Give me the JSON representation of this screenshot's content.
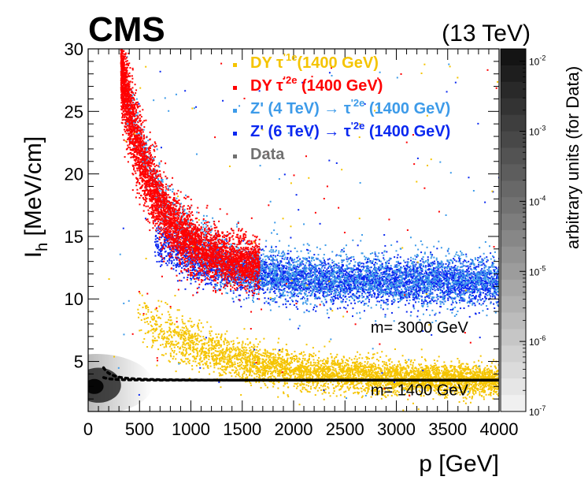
{
  "chart_data": {
    "type": "scatter",
    "experiment_label": "CMS",
    "energy_label": "(13 TeV)",
    "xlabel": "p [GeV]",
    "ylabel_main": "I",
    "ylabel_sub": "h",
    "ylabel_unit": "[MeV/cm]",
    "xlim": [
      0,
      4000
    ],
    "ylim": [
      1,
      30
    ],
    "x_ticks": [
      0,
      500,
      1000,
      1500,
      2000,
      2500,
      3000,
      3500,
      4000
    ],
    "y_ticks": [
      5,
      10,
      15,
      20,
      25,
      30
    ],
    "colorbar": {
      "label": "arbitrary units (for Data)",
      "scale": "log",
      "ticks": [
        {
          "base": "10",
          "exp": "-2",
          "value": 0.01
        },
        {
          "base": "10",
          "exp": "-3",
          "value": 0.001
        },
        {
          "base": "10",
          "exp": "-4",
          "value": 0.0001
        },
        {
          "base": "10",
          "exp": "-5",
          "value": 1e-05
        },
        {
          "base": "10",
          "exp": "-6",
          "value": 1e-06
        },
        {
          "base": "10",
          "exp": "-7",
          "value": 1e-07
        }
      ],
      "range": [
        1e-07,
        0.015
      ]
    },
    "legend": [
      {
        "name": "DY τ'1e (1400 GeV)",
        "color": "#f5c400",
        "parts": [
          "DY  τ",
          "'1e",
          "(1400 GeV)"
        ]
      },
      {
        "name": "DY τ'2e (1400 GeV)",
        "color": "#ff0000",
        "parts": [
          "DY  τ",
          "'2e",
          " (1400 GeV)"
        ]
      },
      {
        "name": "Z' (4 TeV) → τ'2e (1400 GeV)",
        "color": "#3d9be9",
        "parts": [
          "Z' (4 TeV) → τ",
          "'2e",
          " (1400 GeV)"
        ]
      },
      {
        "name": "Z' (6 TeV) → τ'2e (1400 GeV)",
        "color": "#0a28f0",
        "parts": [
          "Z' (6 TeV) → τ",
          "'2e",
          " (1400 GeV)"
        ]
      },
      {
        "name": "Data",
        "color": "#707070",
        "parts": [
          "Data",
          "",
          ""
        ]
      }
    ],
    "mass_curves": [
      {
        "label": "m= 3000 GeV",
        "mass_gev": 3000,
        "K": 2.5,
        "C": 3.5
      },
      {
        "label": "m= 1400 GeV",
        "mass_gev": 1400,
        "K": 2.5,
        "C": 3.5
      }
    ],
    "series": [
      {
        "name": "DY τ'1e (1400 GeV)",
        "color": "#f5c400",
        "description": "band from p≈500 to 4000 GeV, Ih ≈ 8.5 → 3.5"
      },
      {
        "name": "DY τ'2e (1400 GeV)",
        "color": "#ff0000",
        "description": "band from p≈300 to 1700 GeV, Ih ≈ 30 → 12"
      },
      {
        "name": "Z' (4 TeV) → τ'2e (1400 GeV)",
        "color": "#3d9be9",
        "description": "band from p≈300 to 4000 GeV, Ih ≈ 30 → 11"
      },
      {
        "name": "Z' (6 TeV) → τ'2e (1400 GeV)",
        "color": "#0a28f0",
        "description": "band from p≈700 to 4000 GeV, Ih ≈ 15 → 11"
      },
      {
        "name": "Data",
        "color": "#707070",
        "description": "dense blob at p < 500 GeV, Ih ≈ 2–5"
      }
    ]
  }
}
